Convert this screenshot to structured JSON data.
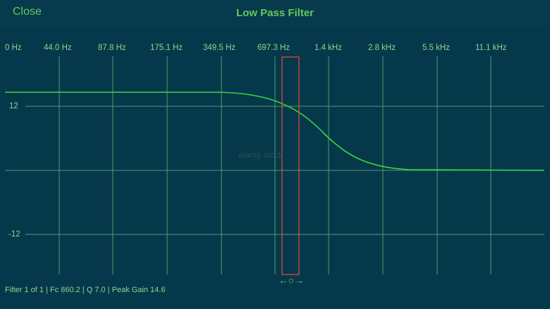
{
  "header": {
    "close_label": "Close",
    "title": "Low Pass Filter"
  },
  "frequency_axis": {
    "labels": [
      "0 Hz",
      "44.0 Hz",
      "87.8 Hz",
      "175.1 Hz",
      "349.5 Hz",
      "697.3 Hz",
      "1.4 kHz",
      "2.8 kHz",
      "5.5 kHz",
      "11.1 kHz"
    ]
  },
  "gain_axis": {
    "labels": [
      "12",
      "-12"
    ]
  },
  "filter": {
    "type": "low-pass",
    "cutoff_hz": 860.2,
    "q": 7.0,
    "peak_gain": 14.6
  },
  "watermark": "alamy stock",
  "status_text": "Filter 1 of 1 | Fc 860.2 | Q 7.0 | Peak Gain 14.6",
  "handle_symbol": "←○→",
  "colors": {
    "background": "#06384c",
    "accent": "#63c95a",
    "grid": "#4f9b6a",
    "curve": "#35d83a",
    "cutoff_marker": "#d84a3a"
  }
}
